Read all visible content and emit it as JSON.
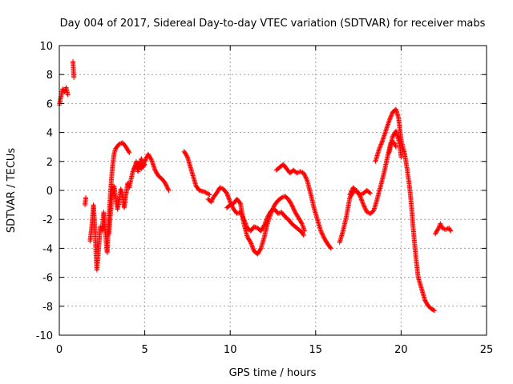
{
  "chart_data": {
    "type": "scatter",
    "title": "Day 004 of 2017, Sidereal Day-to-day VTEC variation (SDTVAR) for receiver mabs",
    "xlabel": "GPS time / hours",
    "ylabel": "SDTVAR / TECUs",
    "xlim": [
      0,
      25
    ],
    "ylim": [
      -10,
      10
    ],
    "xticks": [
      0,
      5,
      10,
      15,
      20,
      25
    ],
    "yticks": [
      -10,
      -8,
      -6,
      -4,
      -2,
      0,
      2,
      4,
      6,
      8,
      10
    ],
    "grid": true,
    "marker": "+",
    "color": "#ff0000",
    "segments": [
      [
        [
          0.0,
          5.9
        ],
        [
          0.1,
          6.5
        ],
        [
          0.2,
          7.0
        ],
        [
          0.3,
          6.8
        ],
        [
          0.4,
          7.1
        ],
        [
          0.5,
          6.6
        ]
      ],
      [
        [
          0.8,
          8.9
        ],
        [
          0.85,
          7.8
        ]
      ],
      [
        [
          1.5,
          -1.0
        ],
        [
          1.55,
          -0.5
        ]
      ],
      [
        [
          1.8,
          -3.5
        ],
        [
          1.9,
          -2.5
        ],
        [
          2.0,
          -1.0
        ],
        [
          2.05,
          -2.0
        ],
        [
          2.1,
          -3.0
        ],
        [
          2.15,
          -4.5
        ],
        [
          2.2,
          -5.5
        ],
        [
          2.3,
          -4.0
        ],
        [
          2.4,
          -2.5
        ]
      ],
      [
        [
          2.5,
          -2.8
        ],
        [
          2.6,
          -1.5
        ],
        [
          2.7,
          -3.0
        ],
        [
          2.8,
          -4.3
        ],
        [
          2.9,
          -2.0
        ],
        [
          3.0,
          0.0
        ],
        [
          3.1,
          1.5
        ],
        [
          3.2,
          2.5
        ],
        [
          3.3,
          2.9
        ],
        [
          3.5,
          3.2
        ],
        [
          3.7,
          3.3
        ],
        [
          3.9,
          3.0
        ],
        [
          4.1,
          2.6
        ]
      ],
      [
        [
          2.9,
          -3.0
        ],
        [
          3.0,
          -1.5
        ],
        [
          3.1,
          -0.3
        ],
        [
          3.2,
          0.3
        ],
        [
          3.3,
          -0.5
        ],
        [
          3.4,
          -1.3
        ],
        [
          3.5,
          -0.8
        ],
        [
          3.6,
          0.1
        ],
        [
          3.7,
          -0.4
        ],
        [
          3.8,
          -1.2
        ],
        [
          3.9,
          -0.3
        ],
        [
          4.0,
          0.5
        ],
        [
          4.1,
          0.2
        ],
        [
          4.2,
          0.8
        ],
        [
          4.3,
          1.3
        ],
        [
          4.4,
          1.6
        ],
        [
          4.6,
          1.9
        ],
        [
          4.8,
          1.5
        ],
        [
          5.0,
          2.0
        ],
        [
          5.2,
          2.5
        ],
        [
          5.4,
          2.1
        ],
        [
          5.6,
          1.4
        ],
        [
          5.8,
          1.0
        ],
        [
          6.0,
          0.8
        ],
        [
          6.2,
          0.5
        ],
        [
          6.4,
          0.0
        ]
      ],
      [
        [
          4.4,
          1.5
        ],
        [
          4.5,
          2.0
        ],
        [
          4.6,
          1.3
        ],
        [
          4.7,
          1.7
        ],
        [
          4.8,
          2.2
        ],
        [
          4.9,
          1.6
        ],
        [
          5.0,
          1.8
        ]
      ],
      [
        [
          7.3,
          2.7
        ],
        [
          7.5,
          2.3
        ],
        [
          7.7,
          1.5
        ],
        [
          7.9,
          0.7
        ],
        [
          8.0,
          0.3
        ],
        [
          8.2,
          0.0
        ],
        [
          8.5,
          -0.1
        ],
        [
          8.8,
          -0.3
        ]
      ],
      [
        [
          8.7,
          -0.6
        ],
        [
          8.9,
          -0.8
        ],
        [
          9.0,
          -0.5
        ],
        [
          9.2,
          -0.2
        ],
        [
          9.4,
          0.2
        ],
        [
          9.6,
          0.1
        ],
        [
          9.8,
          -0.2
        ],
        [
          10.0,
          -0.8
        ],
        [
          10.2,
          -1.3
        ],
        [
          10.4,
          -1.6
        ],
        [
          10.6,
          -1.5
        ],
        [
          10.8,
          -2.0
        ],
        [
          11.0,
          -2.6
        ],
        [
          11.2,
          -2.8
        ],
        [
          11.4,
          -2.5
        ],
        [
          11.6,
          -2.6
        ],
        [
          11.8,
          -2.8
        ],
        [
          12.0,
          -2.4
        ],
        [
          12.2,
          -1.8
        ],
        [
          12.4,
          -1.4
        ],
        [
          12.6,
          -1.3
        ],
        [
          12.8,
          -1.6
        ],
        [
          13.0,
          -1.5
        ],
        [
          13.2,
          -1.8
        ],
        [
          13.4,
          -2.0
        ],
        [
          13.6,
          -2.3
        ],
        [
          13.8,
          -2.5
        ],
        [
          14.0,
          -2.7
        ],
        [
          14.2,
          -2.9
        ],
        [
          14.3,
          -3.1
        ]
      ],
      [
        [
          9.8,
          -1.2
        ],
        [
          10.0,
          -1.0
        ],
        [
          10.2,
          -0.9
        ],
        [
          10.4,
          -0.6
        ],
        [
          10.6,
          -0.9
        ],
        [
          10.8,
          -2.3
        ],
        [
          11.0,
          -3.2
        ],
        [
          11.2,
          -3.6
        ],
        [
          11.4,
          -4.2
        ],
        [
          11.6,
          -4.4
        ],
        [
          11.8,
          -4.0
        ],
        [
          12.0,
          -3.2
        ],
        [
          12.2,
          -2.2
        ],
        [
          12.4,
          -1.5
        ],
        [
          12.6,
          -1.0
        ],
        [
          12.8,
          -0.7
        ],
        [
          13.0,
          -0.5
        ],
        [
          13.2,
          -0.4
        ],
        [
          13.4,
          -0.6
        ],
        [
          13.6,
          -1.0
        ],
        [
          13.8,
          -1.5
        ],
        [
          14.0,
          -1.9
        ],
        [
          14.2,
          -2.3
        ],
        [
          14.35,
          -2.8
        ]
      ],
      [
        [
          12.7,
          1.4
        ],
        [
          12.9,
          1.6
        ],
        [
          13.1,
          1.8
        ],
        [
          13.3,
          1.5
        ],
        [
          13.5,
          1.2
        ],
        [
          13.7,
          1.4
        ],
        [
          13.9,
          1.2
        ],
        [
          14.1,
          1.3
        ],
        [
          14.3,
          1.2
        ],
        [
          14.5,
          0.7
        ],
        [
          14.7,
          -0.2
        ],
        [
          14.9,
          -1.2
        ],
        [
          15.1,
          -2.0
        ],
        [
          15.3,
          -2.8
        ],
        [
          15.5,
          -3.3
        ],
        [
          15.7,
          -3.7
        ],
        [
          15.9,
          -4.0
        ]
      ],
      [
        [
          16.4,
          -3.6
        ],
        [
          16.6,
          -2.8
        ],
        [
          16.8,
          -1.8
        ],
        [
          17.0,
          -0.5
        ],
        [
          17.2,
          -0.1
        ],
        [
          17.4,
          0.0
        ],
        [
          17.6,
          -0.4
        ],
        [
          17.8,
          -1.0
        ],
        [
          18.0,
          -1.5
        ],
        [
          18.2,
          -1.6
        ],
        [
          18.4,
          -1.4
        ],
        [
          18.6,
          -0.6
        ],
        [
          18.8,
          0.3
        ],
        [
          19.0,
          1.2
        ],
        [
          19.2,
          2.3
        ],
        [
          19.4,
          3.3
        ],
        [
          19.6,
          3.3
        ],
        [
          19.7,
          3.0
        ]
      ],
      [
        [
          17.0,
          -0.3
        ],
        [
          17.2,
          0.2
        ],
        [
          17.4,
          -0.1
        ],
        [
          17.6,
          -0.3
        ],
        [
          17.8,
          -0.2
        ],
        [
          18.0,
          0.0
        ],
        [
          18.2,
          -0.2
        ]
      ],
      [
        [
          18.5,
          2.0
        ],
        [
          18.7,
          2.8
        ],
        [
          18.9,
          3.4
        ],
        [
          19.1,
          4.1
        ],
        [
          19.3,
          4.8
        ],
        [
          19.5,
          5.4
        ],
        [
          19.7,
          5.6
        ],
        [
          19.85,
          5.0
        ],
        [
          20.0,
          3.5
        ],
        [
          20.1,
          3.0
        ],
        [
          20.2,
          2.6
        ],
        [
          20.35,
          1.5
        ],
        [
          20.5,
          0.2
        ],
        [
          20.6,
          -1.0
        ],
        [
          20.7,
          -2.5
        ],
        [
          20.8,
          -3.8
        ],
        [
          20.9,
          -5.0
        ],
        [
          21.0,
          -6.0
        ],
        [
          21.2,
          -6.8
        ],
        [
          21.4,
          -7.6
        ],
        [
          21.6,
          -8.0
        ],
        [
          21.8,
          -8.2
        ],
        [
          21.95,
          -8.3
        ]
      ],
      [
        [
          19.3,
          2.6
        ],
        [
          19.5,
          3.7
        ],
        [
          19.7,
          4.1
        ],
        [
          19.9,
          3.3
        ],
        [
          20.0,
          2.3
        ]
      ],
      [
        [
          22.0,
          -3.0
        ],
        [
          22.2,
          -2.6
        ],
        [
          22.3,
          -2.3
        ],
        [
          22.4,
          -2.6
        ],
        [
          22.6,
          -2.7
        ],
        [
          22.8,
          -2.6
        ],
        [
          22.9,
          -2.8
        ]
      ]
    ]
  }
}
